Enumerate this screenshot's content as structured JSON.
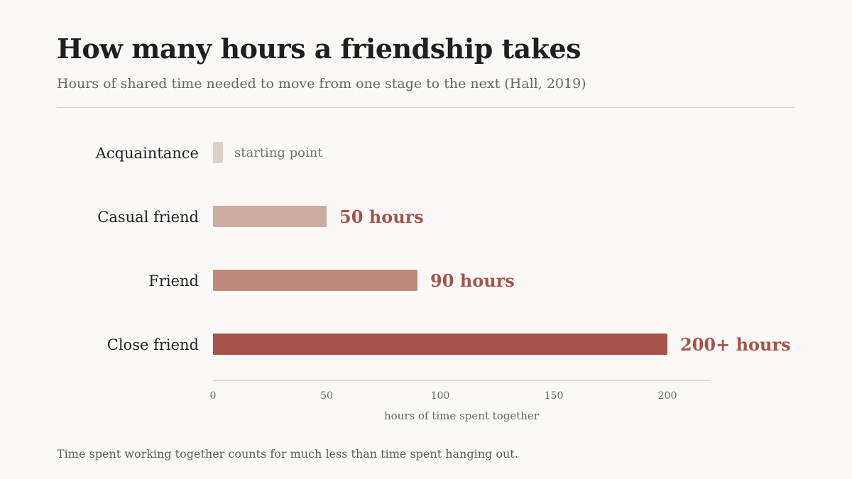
{
  "page": {
    "title": "How many hours a friendship takes",
    "subtitle": "Hours of shared time needed to move from one stage to the next (Hall, 2019)",
    "footnote": "Time spent working together counts for much less than time spent hanging out."
  },
  "chart_data": {
    "type": "bar",
    "orientation": "horizontal",
    "categories": [
      "Acquaintance",
      "Casual friend",
      "Friend",
      "Close friend"
    ],
    "values": [
      0,
      50,
      90,
      200
    ],
    "data_labels": [
      "starting point",
      "50 hours",
      "90 hours",
      "200+ hours"
    ],
    "colors": [
      "#dcd0c8",
      "#cdaba0",
      "#bc8a7a",
      "#a4544a"
    ],
    "label_color": "#a4544a",
    "muted_label_color": "#7a716b",
    "xlabel": "hours of time spent together",
    "ylabel": "",
    "xlim": [
      0,
      220
    ],
    "xticks": [
      0,
      50,
      100,
      150,
      200
    ],
    "grid": false,
    "legend": "none"
  }
}
